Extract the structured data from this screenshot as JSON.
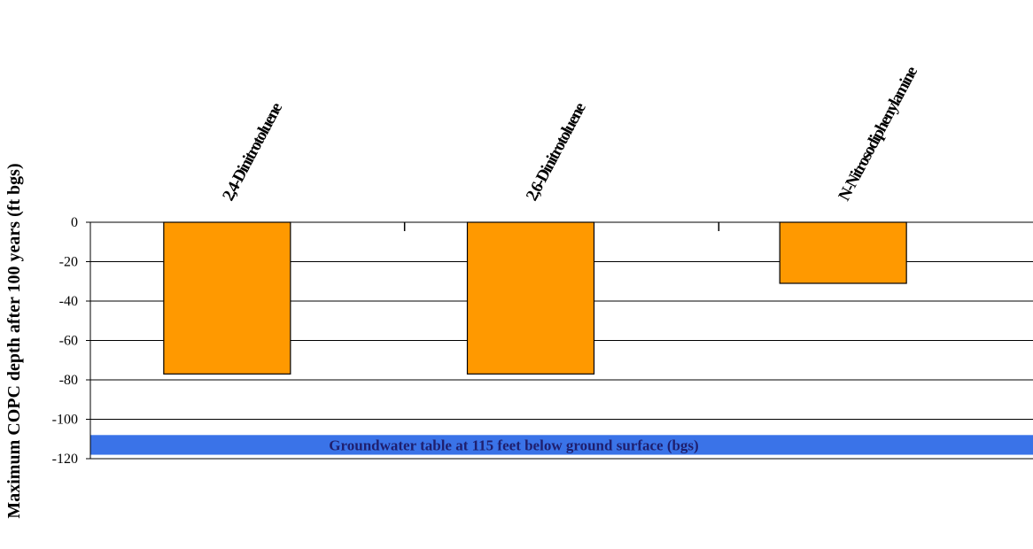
{
  "chart_data": {
    "type": "bar",
    "categories": [
      "2,4-Dinitrotoluene",
      "2,6-Dinitrotoluene",
      "N-Nitrosodiphenylamine"
    ],
    "series": [
      {
        "values": [
          -77,
          -77,
          -31
        ]
      }
    ],
    "title": "",
    "xlabel": "",
    "ylabel": "Maximum COPC depth after 100 years (ft bgs)",
    "ylim": [
      -120,
      0
    ],
    "yticks": [
      0,
      -20,
      -40,
      -60,
      -80,
      -100,
      -120
    ],
    "grid": true,
    "bar_color": "#ff9900",
    "annotation": {
      "text": "Groundwater table at 115 feet below ground surface (bgs)",
      "y_range": [
        -118,
        -108
      ],
      "color": "#3a73e8"
    }
  }
}
